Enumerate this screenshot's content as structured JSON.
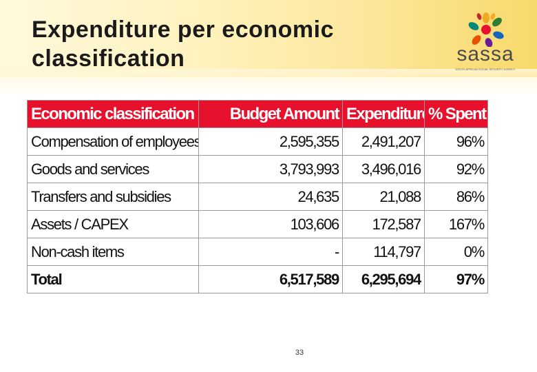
{
  "slide": {
    "title_line1": "Expenditure per economic",
    "title_line2": "classification",
    "page_number": "33"
  },
  "logo": {
    "word": "sassa",
    "tagline": "SOUTH AFRICAN SOCIAL SECURITY AGENCY"
  },
  "table": {
    "headers": [
      "Economic classification",
      "Budget Amount",
      "Expenditure",
      "% Spent"
    ],
    "rows": [
      [
        "Compensation of employees",
        "2,595,355",
        "2,491,207",
        "96%"
      ],
      [
        "Goods and services",
        "3,793,993",
        "3,496,016",
        "92%"
      ],
      [
        "Transfers and subsidies",
        "24,635",
        "21,088",
        "86%"
      ],
      [
        "Assets / CAPEX",
        "103,606",
        "172,587",
        "167%"
      ],
      [
        "Non-cash items",
        "-",
        "114,797",
        "0%"
      ],
      [
        "Total",
        "6,517,589",
        "6,295,694",
        "97%"
      ]
    ]
  },
  "colors": {
    "header_fill": "#e8112d",
    "header_text": "#ffffff",
    "grid": "#9a9a9a",
    "band_gradient_end": "#f8d96a"
  }
}
